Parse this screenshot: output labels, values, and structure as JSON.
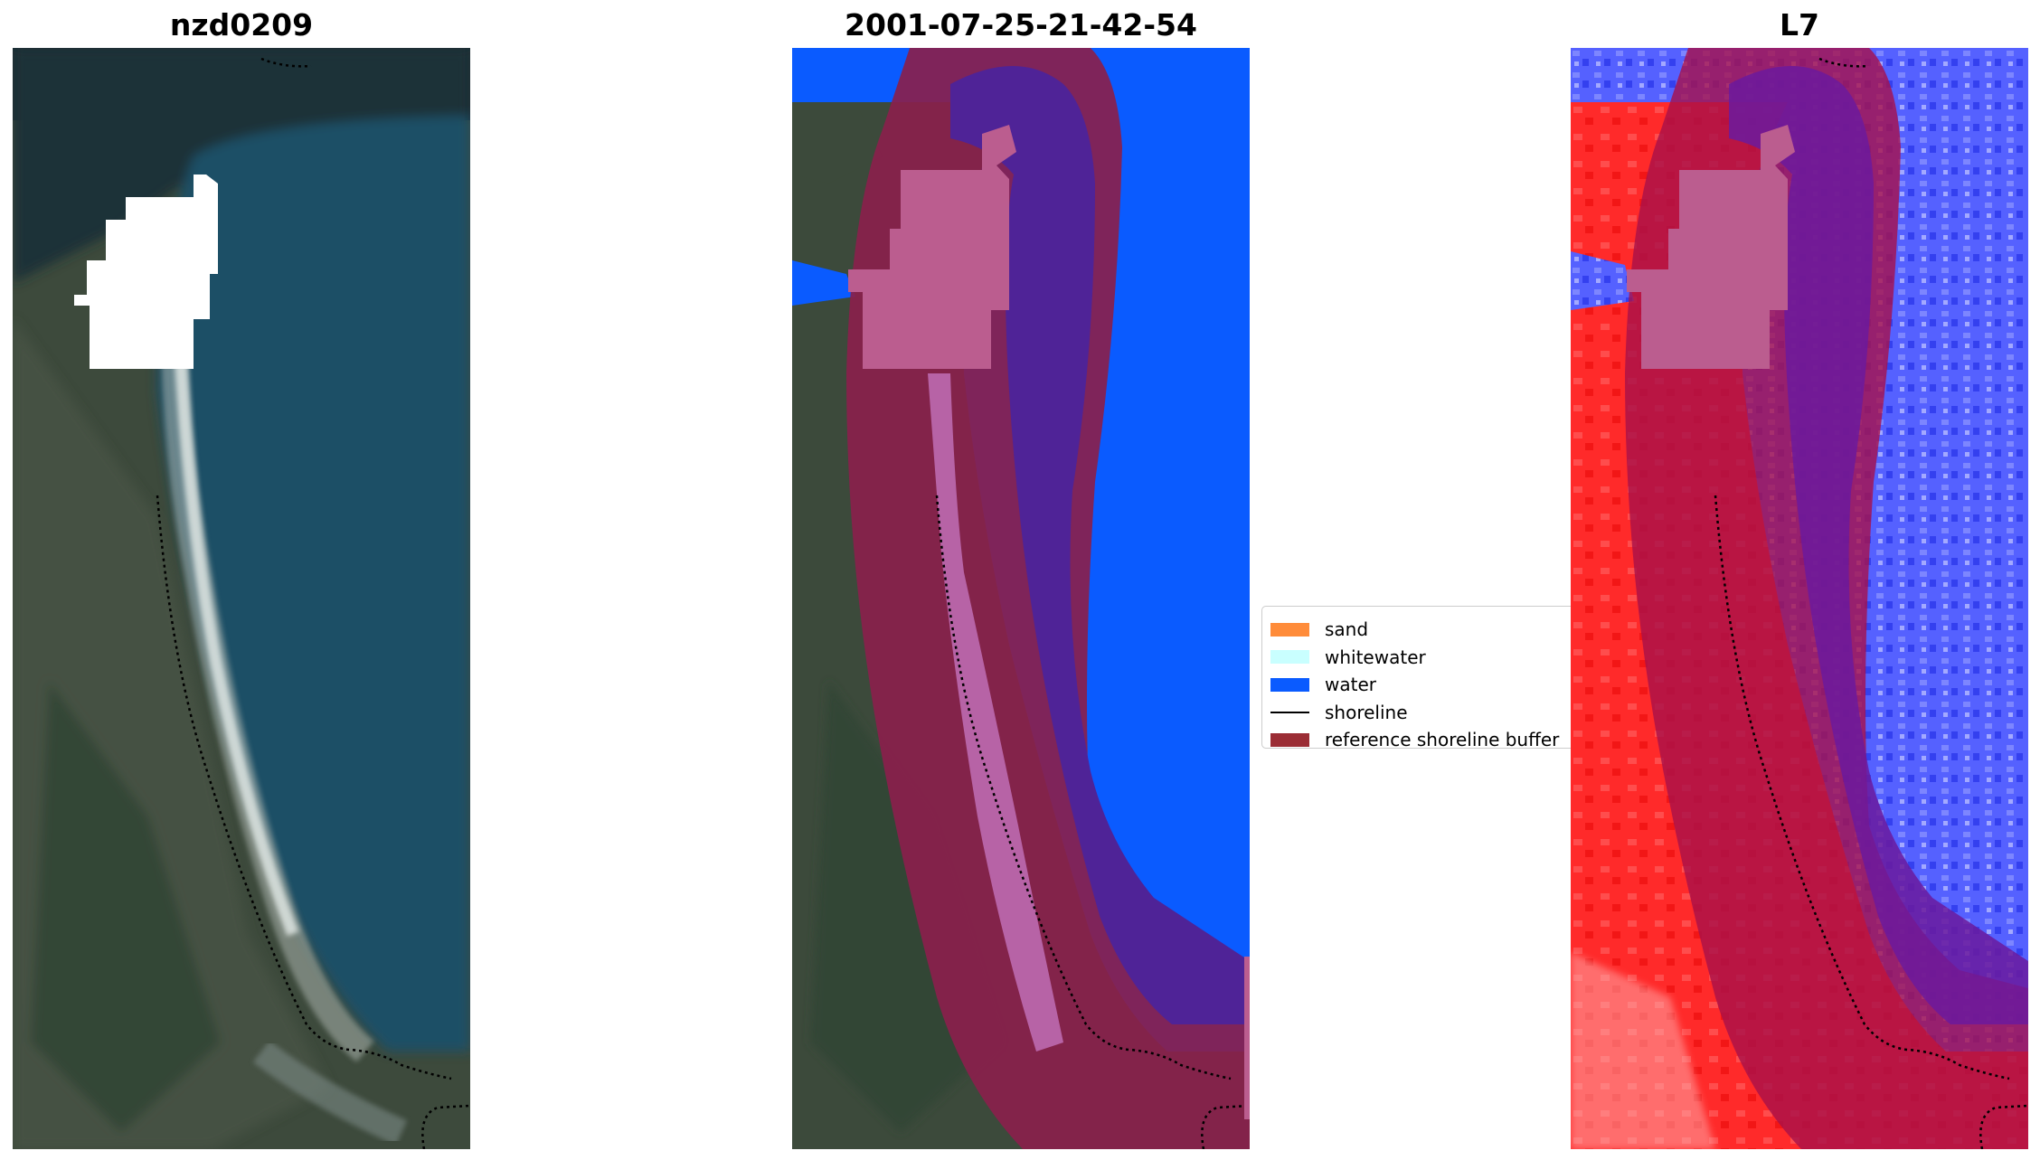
{
  "panels": [
    {
      "title": "nzd0209",
      "kind": "rgb-image"
    },
    {
      "title": "2001-07-25-21-42-54",
      "kind": "classified-image"
    },
    {
      "title": "L7",
      "kind": "index-image"
    }
  ],
  "legend": {
    "items": [
      {
        "label": "sand",
        "type": "patch",
        "color": "#ff8c3a"
      },
      {
        "label": "whitewater",
        "type": "patch",
        "color": "#c9ffff"
      },
      {
        "label": "water",
        "type": "patch",
        "color": "#0a5bff"
      },
      {
        "label": "shoreline",
        "type": "line",
        "color": "#000000"
      },
      {
        "label": "reference shoreline buffer",
        "type": "patch",
        "color": "#9b2d35"
      }
    ]
  },
  "colors": {
    "land_dark": "#3b4a3a",
    "ocean": "#1f5168",
    "beach": "#b9bdb8",
    "buffer": "#8a1f4c",
    "water_class": "#0a5bff",
    "water_in_buffer": "#4f2397",
    "cloud_mask": "#ffffff",
    "index_land": "#ff2a2a",
    "index_water": "#5561ff"
  }
}
